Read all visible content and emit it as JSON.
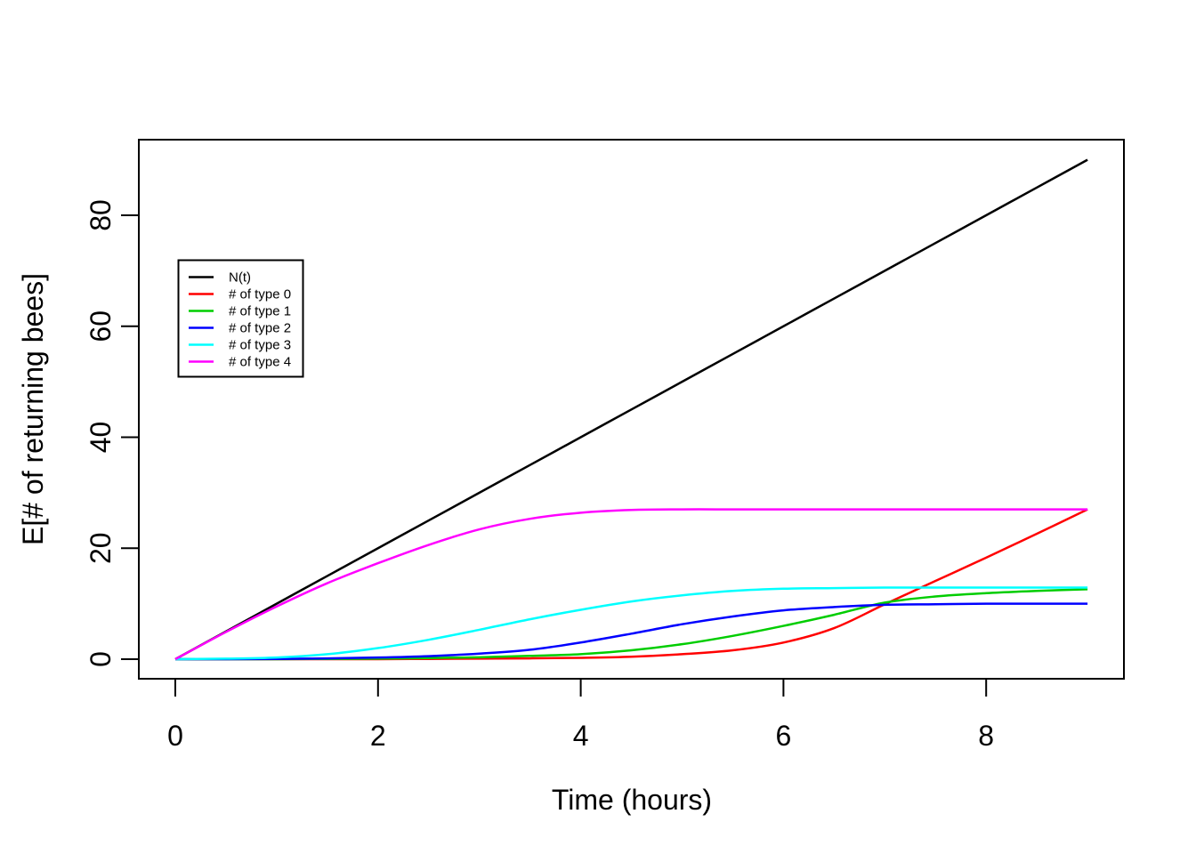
{
  "chart_data": {
    "type": "line",
    "title": "",
    "xlabel": "Time (hours)",
    "ylabel": "E[# of returning bees]",
    "xlim": [
      0,
      9
    ],
    "ylim": [
      0,
      90
    ],
    "xticks": [
      0,
      2,
      4,
      6,
      8
    ],
    "yticks": [
      0,
      20,
      40,
      60,
      80
    ],
    "grid": false,
    "background": "#FFFFFF",
    "axis_color": "#000000",
    "legend": {
      "position": "upper-left",
      "entries": [
        "N(t)",
        "# of type 0",
        "# of type 1",
        "# of type 2",
        "# of type 3",
        "# of type 4"
      ]
    },
    "x": [
      0,
      0.5,
      1,
      1.5,
      2,
      2.5,
      3,
      3.5,
      4,
      4.5,
      5,
      5.5,
      6,
      6.5,
      7,
      7.5,
      8,
      8.5,
      9
    ],
    "series": [
      {
        "name": "N(t)",
        "color": "#000000",
        "values": [
          0,
          5,
          10,
          15,
          20,
          25,
          30,
          35,
          40,
          45,
          50,
          55,
          60,
          65,
          70,
          75,
          80,
          85,
          90
        ]
      },
      {
        "name": "# of type 0",
        "color": "#FF0000",
        "values": [
          0,
          0,
          0,
          0,
          0,
          0.05,
          0.1,
          0.15,
          0.25,
          0.45,
          0.9,
          1.6,
          3.0,
          5.6,
          9.9,
          14.1,
          18.3,
          22.6,
          27
        ]
      },
      {
        "name": "# of type 1",
        "color": "#00CD00",
        "values": [
          0,
          0,
          0,
          0.05,
          0.1,
          0.2,
          0.35,
          0.6,
          0.9,
          1.6,
          2.7,
          4.2,
          6.0,
          8.0,
          10.2,
          11.3,
          11.9,
          12.3,
          12.6
        ]
      },
      {
        "name": "# of type 2",
        "color": "#0000FF",
        "values": [
          0,
          0,
          0.05,
          0.15,
          0.3,
          0.55,
          1.0,
          1.7,
          3.0,
          4.6,
          6.3,
          7.7,
          8.8,
          9.4,
          9.8,
          9.9,
          10,
          10,
          10
        ]
      },
      {
        "name": "# of type 3",
        "color": "#00FFFF",
        "values": [
          0,
          0.1,
          0.3,
          0.9,
          2.0,
          3.5,
          5.3,
          7.2,
          8.9,
          10.4,
          11.5,
          12.3,
          12.7,
          12.8,
          12.9,
          12.9,
          12.9,
          12.9,
          12.9
        ]
      },
      {
        "name": "# of type 4",
        "color": "#FF00FF",
        "values": [
          0,
          4.9,
          9.5,
          13.7,
          17.3,
          20.6,
          23.4,
          25.3,
          26.4,
          26.9,
          27,
          27,
          27,
          27,
          27,
          27,
          27,
          27,
          27
        ]
      }
    ]
  }
}
